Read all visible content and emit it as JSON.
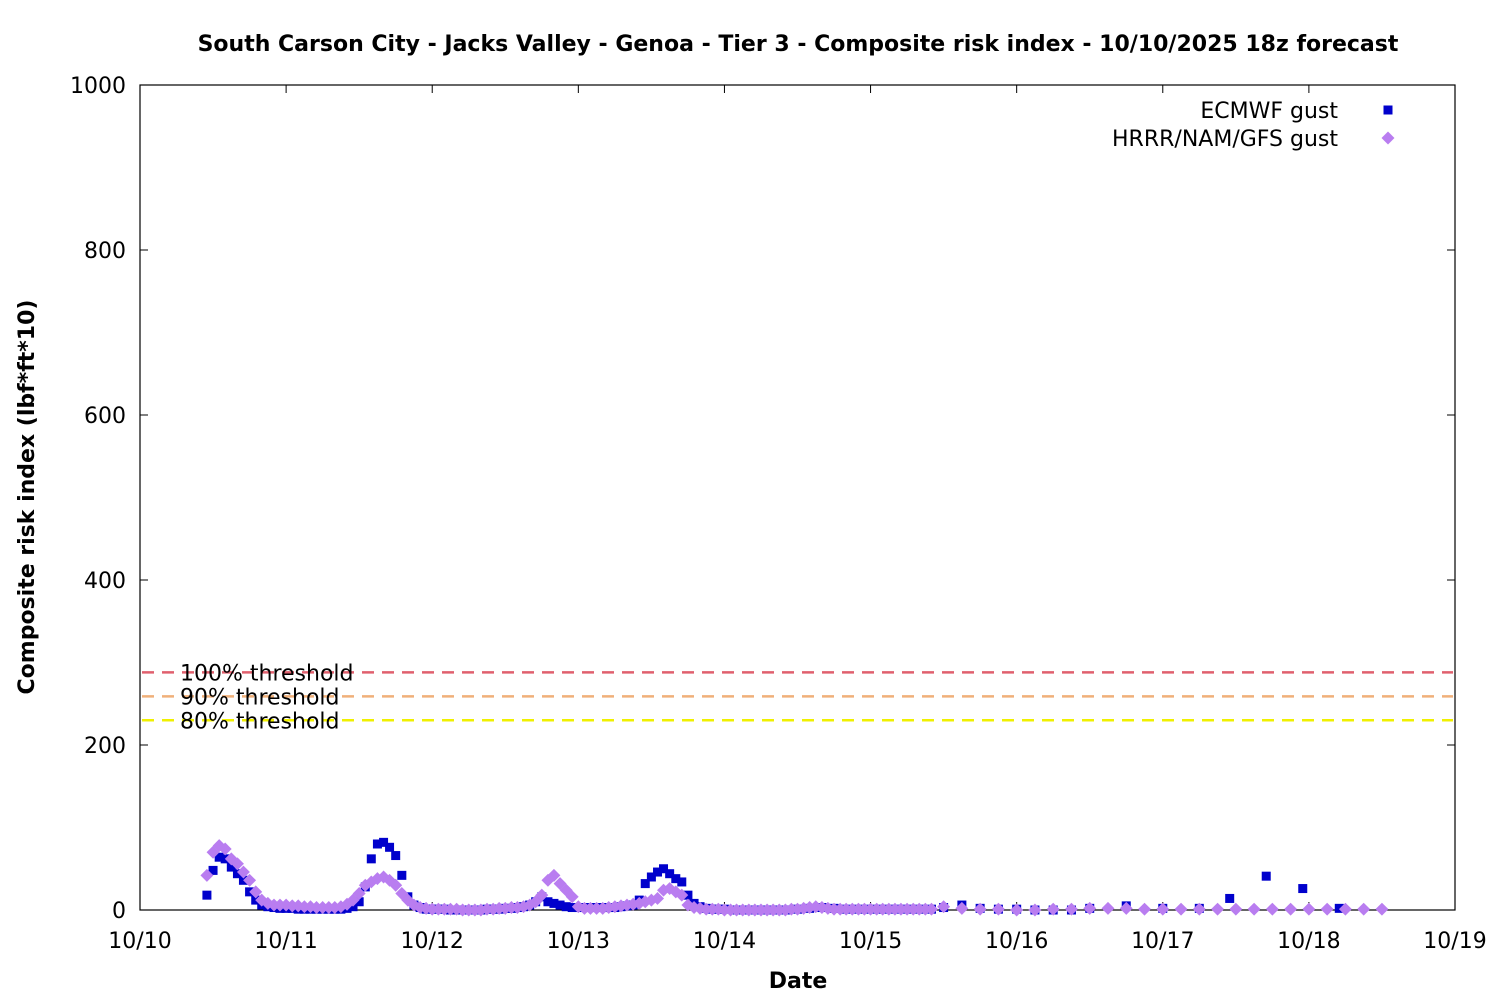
{
  "chart_data": {
    "type": "scatter",
    "title": "South Carson City - Jacks Valley - Genoa - Tier 3 - Composite risk index - 10/10/2025 18z forecast",
    "xlabel": "Date",
    "ylabel": "Composite risk index (lbf*ft*10)",
    "xlim": [
      0,
      9
    ],
    "ylim": [
      0,
      1000
    ],
    "x_tick_labels": [
      "10/10",
      "10/11",
      "10/12",
      "10/13",
      "10/14",
      "10/15",
      "10/16",
      "10/17",
      "10/18",
      "10/19"
    ],
    "y_ticks": [
      0,
      200,
      400,
      600,
      800,
      1000
    ],
    "x_units": "days since 10/10 00z",
    "grid": false,
    "legend_position": "top-right",
    "thresholds": [
      {
        "label": "100% threshold",
        "value": 288,
        "color": "#e0606e"
      },
      {
        "label": "90% threshold",
        "value": 259,
        "color": "#f0b07a"
      },
      {
        "label": "80% threshold",
        "value": 230,
        "color": "#f0f000"
      }
    ],
    "series": [
      {
        "name": "ECMWF gust",
        "color": "#0000cc",
        "marker": "square",
        "points": [
          [
            0.458,
            18
          ],
          [
            0.5,
            48
          ],
          [
            0.542,
            64
          ],
          [
            0.583,
            62
          ],
          [
            0.625,
            52
          ],
          [
            0.667,
            44
          ],
          [
            0.708,
            36
          ],
          [
            0.75,
            22
          ],
          [
            0.792,
            12
          ],
          [
            0.833,
            6
          ],
          [
            0.875,
            4
          ],
          [
            0.917,
            3
          ],
          [
            0.958,
            2
          ],
          [
            1.0,
            2
          ],
          [
            1.042,
            2
          ],
          [
            1.083,
            1
          ],
          [
            1.125,
            1
          ],
          [
            1.167,
            1
          ],
          [
            1.208,
            1
          ],
          [
            1.25,
            1
          ],
          [
            1.292,
            1
          ],
          [
            1.333,
            1
          ],
          [
            1.375,
            1
          ],
          [
            1.417,
            2
          ],
          [
            1.458,
            4
          ],
          [
            1.5,
            10
          ],
          [
            1.542,
            28
          ],
          [
            1.583,
            62
          ],
          [
            1.625,
            80
          ],
          [
            1.667,
            82
          ],
          [
            1.708,
            76
          ],
          [
            1.75,
            66
          ],
          [
            1.792,
            42
          ],
          [
            1.833,
            16
          ],
          [
            1.875,
            6
          ],
          [
            1.917,
            3
          ],
          [
            1.958,
            1
          ],
          [
            2.0,
            1
          ],
          [
            2.042,
            1
          ],
          [
            2.083,
            1
          ],
          [
            2.125,
            0
          ],
          [
            2.167,
            0
          ],
          [
            2.208,
            0
          ],
          [
            2.25,
            0
          ],
          [
            2.292,
            0
          ],
          [
            2.333,
            0
          ],
          [
            2.375,
            1
          ],
          [
            2.417,
            1
          ],
          [
            2.458,
            1
          ],
          [
            2.5,
            2
          ],
          [
            2.542,
            2
          ],
          [
            2.583,
            3
          ],
          [
            2.625,
            4
          ],
          [
            2.667,
            6
          ],
          [
            2.708,
            10
          ],
          [
            2.75,
            16
          ],
          [
            2.792,
            10
          ],
          [
            2.833,
            8
          ],
          [
            2.875,
            6
          ],
          [
            2.917,
            4
          ],
          [
            2.958,
            3
          ],
          [
            3.0,
            3
          ],
          [
            3.042,
            3
          ],
          [
            3.083,
            3
          ],
          [
            3.125,
            3
          ],
          [
            3.167,
            3
          ],
          [
            3.208,
            3
          ],
          [
            3.25,
            3
          ],
          [
            3.292,
            4
          ],
          [
            3.333,
            5
          ],
          [
            3.375,
            6
          ],
          [
            3.417,
            12
          ],
          [
            3.458,
            32
          ],
          [
            3.5,
            40
          ],
          [
            3.542,
            46
          ],
          [
            3.583,
            50
          ],
          [
            3.625,
            44
          ],
          [
            3.667,
            38
          ],
          [
            3.708,
            34
          ],
          [
            3.75,
            18
          ],
          [
            3.792,
            8
          ],
          [
            3.833,
            4
          ],
          [
            3.875,
            2
          ],
          [
            3.917,
            1
          ],
          [
            3.958,
            1
          ],
          [
            4.0,
            1
          ],
          [
            4.083,
            0
          ],
          [
            4.167,
            0
          ],
          [
            4.25,
            0
          ],
          [
            4.333,
            0
          ],
          [
            4.417,
            0
          ],
          [
            4.5,
            1
          ],
          [
            4.583,
            2
          ],
          [
            4.667,
            3
          ],
          [
            4.75,
            2
          ],
          [
            4.833,
            1
          ],
          [
            4.917,
            1
          ],
          [
            5.0,
            1
          ],
          [
            5.083,
            1
          ],
          [
            5.167,
            1
          ],
          [
            5.25,
            1
          ],
          [
            5.333,
            1
          ],
          [
            5.417,
            1
          ],
          [
            5.5,
            3
          ],
          [
            5.625,
            6
          ],
          [
            5.75,
            2
          ],
          [
            5.875,
            1
          ],
          [
            6.0,
            1
          ],
          [
            6.125,
            0
          ],
          [
            6.25,
            0
          ],
          [
            6.375,
            0
          ],
          [
            6.5,
            2
          ],
          [
            6.75,
            5
          ],
          [
            7.0,
            2
          ],
          [
            7.25,
            2
          ],
          [
            7.458,
            14
          ],
          [
            7.708,
            41
          ],
          [
            7.958,
            26
          ],
          [
            8.208,
            2
          ]
        ]
      },
      {
        "name": "HRRR/NAM/GFS gust",
        "color": "#b97df0",
        "marker": "diamond",
        "points": [
          [
            0.458,
            42
          ],
          [
            0.5,
            70
          ],
          [
            0.542,
            78
          ],
          [
            0.583,
            74
          ],
          [
            0.625,
            62
          ],
          [
            0.667,
            56
          ],
          [
            0.708,
            46
          ],
          [
            0.75,
            36
          ],
          [
            0.792,
            22
          ],
          [
            0.833,
            12
          ],
          [
            0.875,
            8
          ],
          [
            0.917,
            6
          ],
          [
            0.958,
            6
          ],
          [
            1.0,
            6
          ],
          [
            1.042,
            5
          ],
          [
            1.083,
            5
          ],
          [
            1.125,
            4
          ],
          [
            1.167,
            4
          ],
          [
            1.208,
            3
          ],
          [
            1.25,
            3
          ],
          [
            1.292,
            3
          ],
          [
            1.333,
            3
          ],
          [
            1.375,
            4
          ],
          [
            1.417,
            7
          ],
          [
            1.458,
            12
          ],
          [
            1.5,
            20
          ],
          [
            1.542,
            30
          ],
          [
            1.583,
            34
          ],
          [
            1.625,
            38
          ],
          [
            1.667,
            40
          ],
          [
            1.708,
            36
          ],
          [
            1.75,
            30
          ],
          [
            1.792,
            20
          ],
          [
            1.833,
            12
          ],
          [
            1.875,
            6
          ],
          [
            1.917,
            3
          ],
          [
            1.958,
            2
          ],
          [
            2.0,
            1
          ],
          [
            2.042,
            1
          ],
          [
            2.083,
            1
          ],
          [
            2.125,
            1
          ],
          [
            2.167,
            1
          ],
          [
            2.208,
            0
          ],
          [
            2.25,
            0
          ],
          [
            2.292,
            0
          ],
          [
            2.333,
            0
          ],
          [
            2.375,
            1
          ],
          [
            2.417,
            1
          ],
          [
            2.458,
            2
          ],
          [
            2.5,
            2
          ],
          [
            2.542,
            3
          ],
          [
            2.583,
            3
          ],
          [
            2.625,
            4
          ],
          [
            2.667,
            6
          ],
          [
            2.708,
            10
          ],
          [
            2.75,
            18
          ],
          [
            2.792,
            36
          ],
          [
            2.833,
            42
          ],
          [
            2.875,
            32
          ],
          [
            2.917,
            24
          ],
          [
            2.958,
            16
          ],
          [
            3.0,
            4
          ],
          [
            3.042,
            2
          ],
          [
            3.083,
            2
          ],
          [
            3.125,
            2
          ],
          [
            3.167,
            2
          ],
          [
            3.208,
            3
          ],
          [
            3.25,
            4
          ],
          [
            3.292,
            5
          ],
          [
            3.333,
            6
          ],
          [
            3.375,
            7
          ],
          [
            3.417,
            8
          ],
          [
            3.458,
            10
          ],
          [
            3.5,
            12
          ],
          [
            3.542,
            14
          ],
          [
            3.583,
            24
          ],
          [
            3.625,
            26
          ],
          [
            3.667,
            22
          ],
          [
            3.708,
            18
          ],
          [
            3.75,
            6
          ],
          [
            3.792,
            3
          ],
          [
            3.833,
            2
          ],
          [
            3.875,
            1
          ],
          [
            3.917,
            1
          ],
          [
            3.958,
            1
          ],
          [
            4.0,
            0
          ],
          [
            4.042,
            0
          ],
          [
            4.083,
            0
          ],
          [
            4.125,
            0
          ],
          [
            4.167,
            0
          ],
          [
            4.208,
            0
          ],
          [
            4.25,
            0
          ],
          [
            4.292,
            0
          ],
          [
            4.333,
            0
          ],
          [
            4.375,
            0
          ],
          [
            4.417,
            0
          ],
          [
            4.458,
            1
          ],
          [
            4.5,
            1
          ],
          [
            4.542,
            2
          ],
          [
            4.583,
            3
          ],
          [
            4.625,
            4
          ],
          [
            4.667,
            3
          ],
          [
            4.708,
            2
          ],
          [
            4.75,
            1
          ],
          [
            4.792,
            1
          ],
          [
            4.833,
            1
          ],
          [
            4.875,
            1
          ],
          [
            4.917,
            1
          ],
          [
            4.958,
            1
          ],
          [
            5.0,
            1
          ],
          [
            5.042,
            1
          ],
          [
            5.083,
            1
          ],
          [
            5.125,
            1
          ],
          [
            5.167,
            1
          ],
          [
            5.208,
            1
          ],
          [
            5.25,
            1
          ],
          [
            5.292,
            1
          ],
          [
            5.333,
            1
          ],
          [
            5.375,
            1
          ],
          [
            5.417,
            1
          ],
          [
            5.5,
            4
          ],
          [
            5.625,
            2
          ],
          [
            5.75,
            1
          ],
          [
            5.875,
            1
          ],
          [
            6.0,
            0
          ],
          [
            6.125,
            0
          ],
          [
            6.25,
            1
          ],
          [
            6.375,
            1
          ],
          [
            6.5,
            2
          ],
          [
            6.625,
            2
          ],
          [
            6.75,
            2
          ],
          [
            6.875,
            1
          ],
          [
            7.0,
            1
          ],
          [
            7.125,
            1
          ],
          [
            7.25,
            1
          ],
          [
            7.375,
            1
          ],
          [
            7.5,
            1
          ],
          [
            7.625,
            1
          ],
          [
            7.75,
            1
          ],
          [
            7.875,
            1
          ],
          [
            8.0,
            1
          ],
          [
            8.125,
            1
          ],
          [
            8.25,
            1
          ],
          [
            8.375,
            1
          ],
          [
            8.5,
            1
          ]
        ]
      }
    ]
  }
}
